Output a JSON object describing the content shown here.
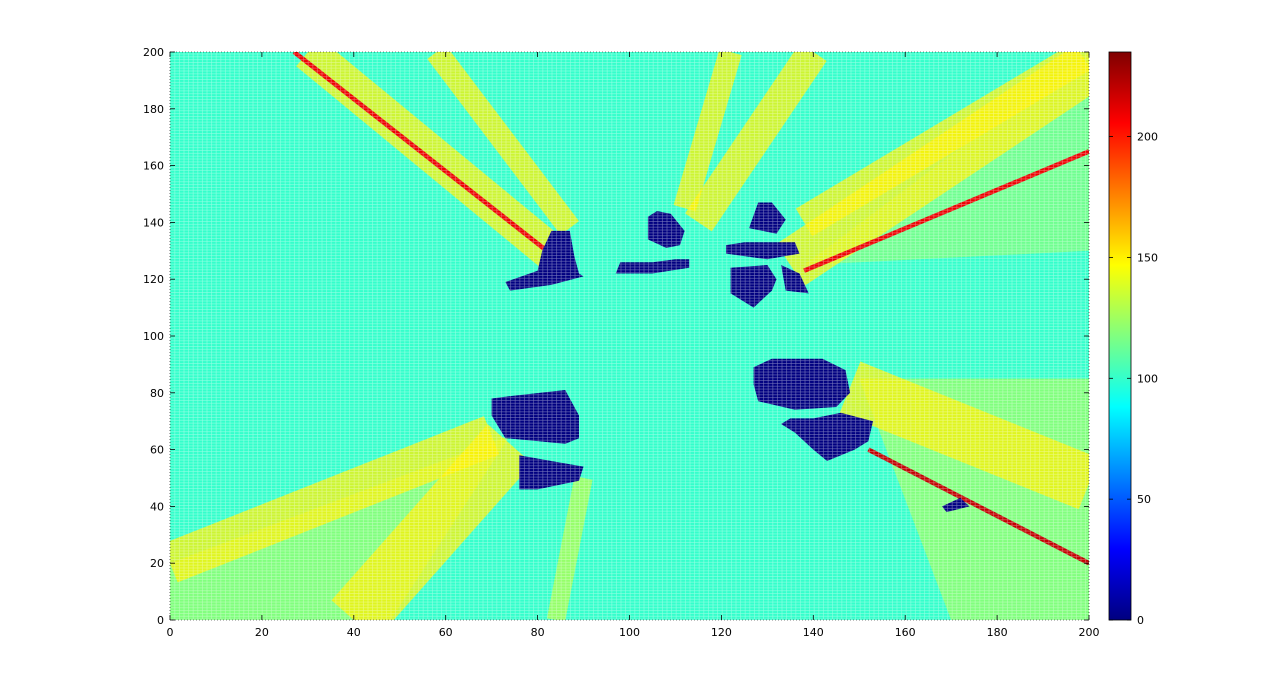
{
  "chart_data": {
    "type": "heatmap",
    "title": "",
    "xlabel": "",
    "ylabel": "",
    "xlim": [
      0,
      200
    ],
    "ylim": [
      0,
      200
    ],
    "x_ticks": [
      0,
      20,
      40,
      60,
      80,
      100,
      120,
      140,
      160,
      180,
      200
    ],
    "y_ticks": [
      0,
      20,
      40,
      60,
      80,
      100,
      120,
      140,
      160,
      180,
      200
    ],
    "colorbar": {
      "colormap": "jet",
      "range": [
        0,
        235
      ],
      "ticks": [
        0,
        50,
        100,
        150,
        200
      ]
    },
    "grid_cell_size": 1,
    "background_value": 100,
    "obstacles": [
      {
        "value": 0,
        "polygon": [
          [
            81,
            130
          ],
          [
            83,
            137
          ],
          [
            87,
            137
          ],
          [
            88,
            128
          ],
          [
            89,
            122
          ],
          [
            90,
            121
          ],
          [
            83,
            118
          ],
          [
            74,
            116
          ],
          [
            73,
            119
          ],
          [
            80,
            123
          ]
        ]
      },
      {
        "value": 0,
        "polygon": [
          [
            97,
            122
          ],
          [
            98,
            126
          ],
          [
            105,
            126
          ],
          [
            110,
            127
          ],
          [
            113,
            127
          ],
          [
            113,
            124
          ],
          [
            105,
            122
          ]
        ]
      },
      {
        "value": 0,
        "polygon": [
          [
            104,
            142
          ],
          [
            104,
            134
          ],
          [
            108,
            131
          ],
          [
            111,
            132
          ],
          [
            112,
            137
          ],
          [
            109,
            143
          ],
          [
            106,
            144
          ]
        ]
      },
      {
        "value": 0,
        "polygon": [
          [
            126,
            138
          ],
          [
            128,
            147
          ],
          [
            131,
            147
          ],
          [
            134,
            141
          ],
          [
            132,
            136
          ]
        ]
      },
      {
        "value": 0,
        "polygon": [
          [
            121,
            129
          ],
          [
            130,
            127
          ],
          [
            137,
            129
          ],
          [
            136,
            133
          ],
          [
            125,
            133
          ],
          [
            121,
            132
          ]
        ]
      },
      {
        "value": 0,
        "polygon": [
          [
            122,
            115
          ],
          [
            122,
            124
          ],
          [
            130,
            125
          ],
          [
            132,
            120
          ],
          [
            131,
            116
          ],
          [
            127,
            110
          ]
        ]
      },
      {
        "value": 0,
        "polygon": [
          [
            133,
            125
          ],
          [
            134,
            116
          ],
          [
            139,
            115
          ],
          [
            137,
            122
          ]
        ]
      },
      {
        "value": 0,
        "polygon": [
          [
            70,
            72
          ],
          [
            73,
            64
          ],
          [
            80,
            63
          ],
          [
            86,
            62
          ],
          [
            89,
            64
          ],
          [
            89,
            72
          ],
          [
            86,
            81
          ],
          [
            75,
            79
          ],
          [
            70,
            78
          ]
        ]
      },
      {
        "value": 0,
        "polygon": [
          [
            76,
            58
          ],
          [
            83,
            56
          ],
          [
            90,
            54
          ],
          [
            89,
            49
          ],
          [
            80,
            46
          ],
          [
            76,
            46
          ]
        ]
      },
      {
        "value": 0,
        "polygon": [
          [
            127,
            83
          ],
          [
            128,
            77
          ],
          [
            136,
            74
          ],
          [
            145,
            75
          ],
          [
            148,
            80
          ],
          [
            147,
            88
          ],
          [
            142,
            92
          ],
          [
            131,
            92
          ],
          [
            127,
            89
          ]
        ]
      },
      {
        "value": 0,
        "polygon": [
          [
            133,
            69
          ],
          [
            136,
            66
          ],
          [
            140,
            60
          ],
          [
            143,
            56
          ],
          [
            149,
            60
          ],
          [
            152,
            63
          ],
          [
            153,
            70
          ],
          [
            146,
            73
          ],
          [
            140,
            71
          ],
          [
            135,
            71
          ]
        ]
      },
      {
        "value": 0,
        "polygon": [
          [
            168,
            40
          ],
          [
            172,
            43
          ],
          [
            174,
            40
          ],
          [
            169,
            38
          ]
        ]
      }
    ],
    "rays": [
      {
        "value": 150,
        "width": 16,
        "points": [
          [
            30,
            200
          ],
          [
            84,
            128
          ]
        ]
      },
      {
        "value": 210,
        "width": 2,
        "points": [
          [
            27,
            200
          ],
          [
            82,
            130
          ]
        ]
      },
      {
        "value": 150,
        "width": 10,
        "points": [
          [
            58,
            200
          ],
          [
            87,
            138
          ]
        ]
      },
      {
        "value": 150,
        "width": 22,
        "points": [
          [
            200,
            195
          ],
          [
            135,
            125
          ]
        ]
      },
      {
        "value": 210,
        "width": 2,
        "points": [
          [
            200,
            165
          ],
          [
            138,
            123
          ]
        ]
      },
      {
        "value": 150,
        "width": 14,
        "points": [
          [
            200,
            200
          ],
          [
            138,
            140
          ]
        ]
      },
      {
        "value": 150,
        "width": 14,
        "points": [
          [
            140,
            200
          ],
          [
            115,
            140
          ]
        ]
      },
      {
        "value": 150,
        "width": 10,
        "points": [
          [
            122,
            200
          ],
          [
            112,
            145
          ]
        ]
      },
      {
        "value": 150,
        "width": 24,
        "points": [
          [
            200,
            48
          ],
          [
            148,
            82
          ]
        ]
      },
      {
        "value": 220,
        "width": 2,
        "points": [
          [
            200,
            20
          ],
          [
            152,
            60
          ]
        ]
      },
      {
        "value": 150,
        "width": 18,
        "points": [
          [
            0,
            20
          ],
          [
            70,
            65
          ]
        ]
      },
      {
        "value": 150,
        "width": 26,
        "points": [
          [
            40,
            0
          ],
          [
            74,
            62
          ]
        ]
      },
      {
        "value": 130,
        "width": 8,
        "points": [
          [
            84,
            0
          ],
          [
            90,
            50
          ]
        ]
      }
    ],
    "region_values": [
      {
        "value": 120,
        "polygon": [
          [
            0,
            0
          ],
          [
            0,
            20
          ],
          [
            74,
            65
          ],
          [
            48,
            0
          ]
        ]
      },
      {
        "value": 120,
        "polygon": [
          [
            150,
            85
          ],
          [
            200,
            85
          ],
          [
            200,
            0
          ],
          [
            170,
            0
          ]
        ]
      },
      {
        "value": 115,
        "polygon": [
          [
            138,
            125
          ],
          [
            200,
            200
          ],
          [
            200,
            130
          ]
        ]
      }
    ]
  }
}
